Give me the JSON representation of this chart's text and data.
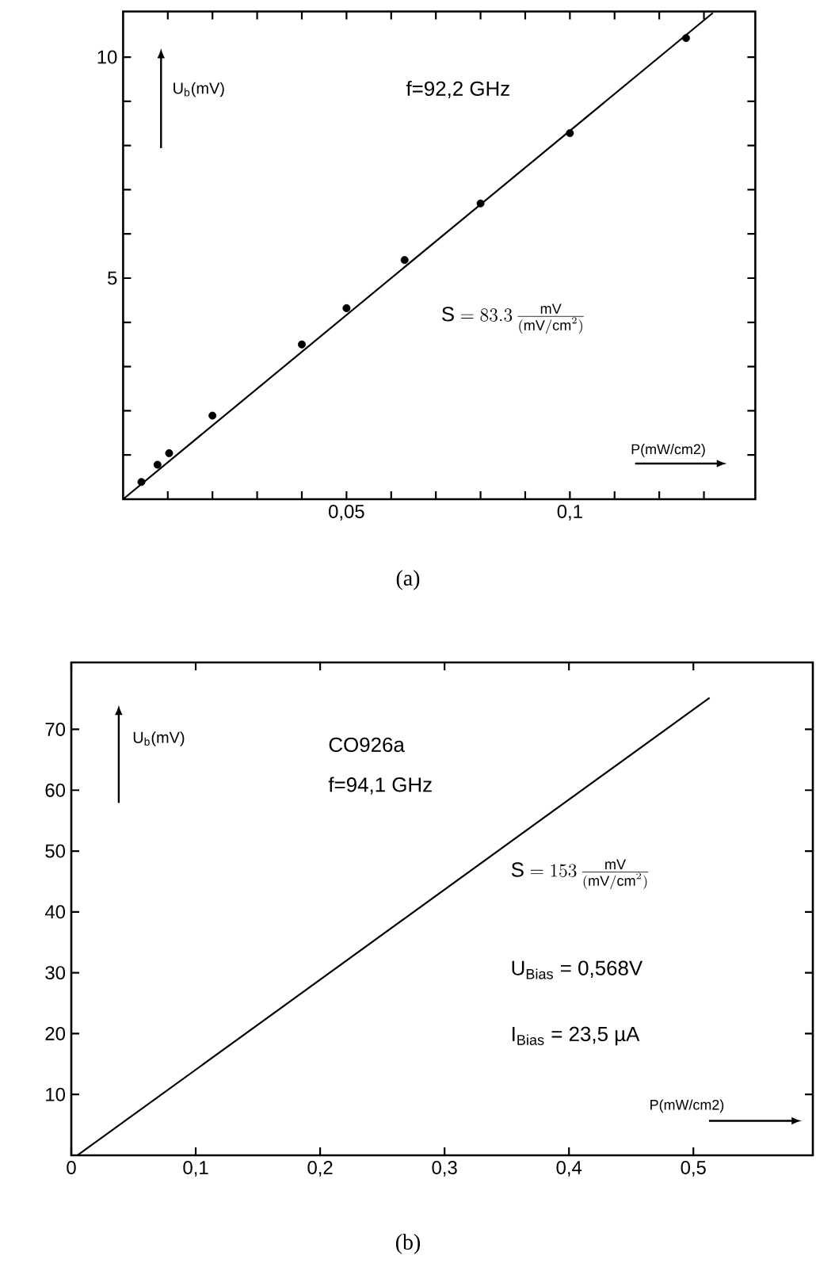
{
  "chart_data": [
    {
      "type": "scatter",
      "title": "(a)",
      "xlabel": "P(mW/cm2)",
      "ylabel": "U$_{b}$(mV)",
      "annotations": [
        "f=92,2 GHz",
        "\\mathrm{S} = 83.3\\,\\frac{\\mathrm{mV}}{(\\mathrm{mV/cm}^{2})}"
      ],
      "xlim": [
        0,
        0.1415
      ],
      "ylim": [
        0,
        11.03
      ],
      "xticks": [
        {
          "value": 0.01,
          "label": null
        },
        {
          "value": 0.02,
          "label": null
        },
        {
          "value": 0.03,
          "label": null
        },
        {
          "value": 0.04,
          "label": null
        },
        {
          "value": 0.05,
          "label": "0,05"
        },
        {
          "value": 0.06,
          "label": null
        },
        {
          "value": 0.07,
          "label": null
        },
        {
          "value": 0.08,
          "label": null
        },
        {
          "value": 0.09,
          "label": null
        },
        {
          "value": 0.1,
          "label": "0,1"
        },
        {
          "value": 0.11,
          "label": null
        },
        {
          "value": 0.12,
          "label": null
        },
        {
          "value": 0.13,
          "label": null
        }
      ],
      "yticks": [
        {
          "value": 1,
          "label": null
        },
        {
          "value": 2,
          "label": null
        },
        {
          "value": 3,
          "label": null
        },
        {
          "value": 4,
          "label": null
        },
        5,
        {
          "value": 6,
          "label": null
        },
        {
          "value": 7,
          "label": null
        },
        {
          "value": 8,
          "label": null
        },
        {
          "value": 9,
          "label": null
        },
        10
      ],
      "series": [
        {
          "marker": "circle",
          "color": "#000000",
          "x": [
            0.0041,
            0.0077,
            0.0103,
            0.02,
            0.04,
            0.05,
            0.063,
            0.08,
            0.1,
            0.126
          ],
          "values": [
            0.39,
            0.78,
            1.04,
            1.89,
            3.5,
            4.32,
            5.41,
            6.69,
            8.28,
            10.43
          ]
        },
        {
          "type": "line",
          "marker": "none",
          "color": "#000000",
          "x": [
            0,
            0.132
          ],
          "values": [
            0,
            11.0
          ]
        }
      ]
    },
    {
      "type": "line",
      "title": "(b)",
      "xlabel": "P(mW/cm2)",
      "ylabel": "U$_{b}$(mV)",
      "annotations": [
        "CO926a",
        "f=94,1 GHz",
        "\\mathrm{S} = 153\\,\\frac{\\mathrm{mV}}{(\\mathrm{mV/cm}^{2})}",
        "U$_{Bias}$ = 0,568V",
        "I$_{Bias}$ = 23,5 µA"
      ],
      "xlim": [
        0,
        0.596
      ],
      "ylim": [
        0,
        81
      ],
      "xticks": [
        0,
        {
          "value": 0.1,
          "label": "0,1"
        },
        {
          "value": 0.2,
          "label": "0,2"
        },
        {
          "value": 0.3,
          "label": "0,3"
        },
        {
          "value": 0.4,
          "label": "0,4"
        },
        {
          "value": 0.5,
          "label": "0,5"
        }
      ],
      "yticks": [
        10,
        20,
        30,
        40,
        50,
        60,
        70
      ],
      "series": [
        {
          "marker": "none",
          "color": "#000000",
          "x": [
            0.005,
            0.513
          ],
          "values": [
            0,
            75.2
          ]
        }
      ]
    }
  ]
}
